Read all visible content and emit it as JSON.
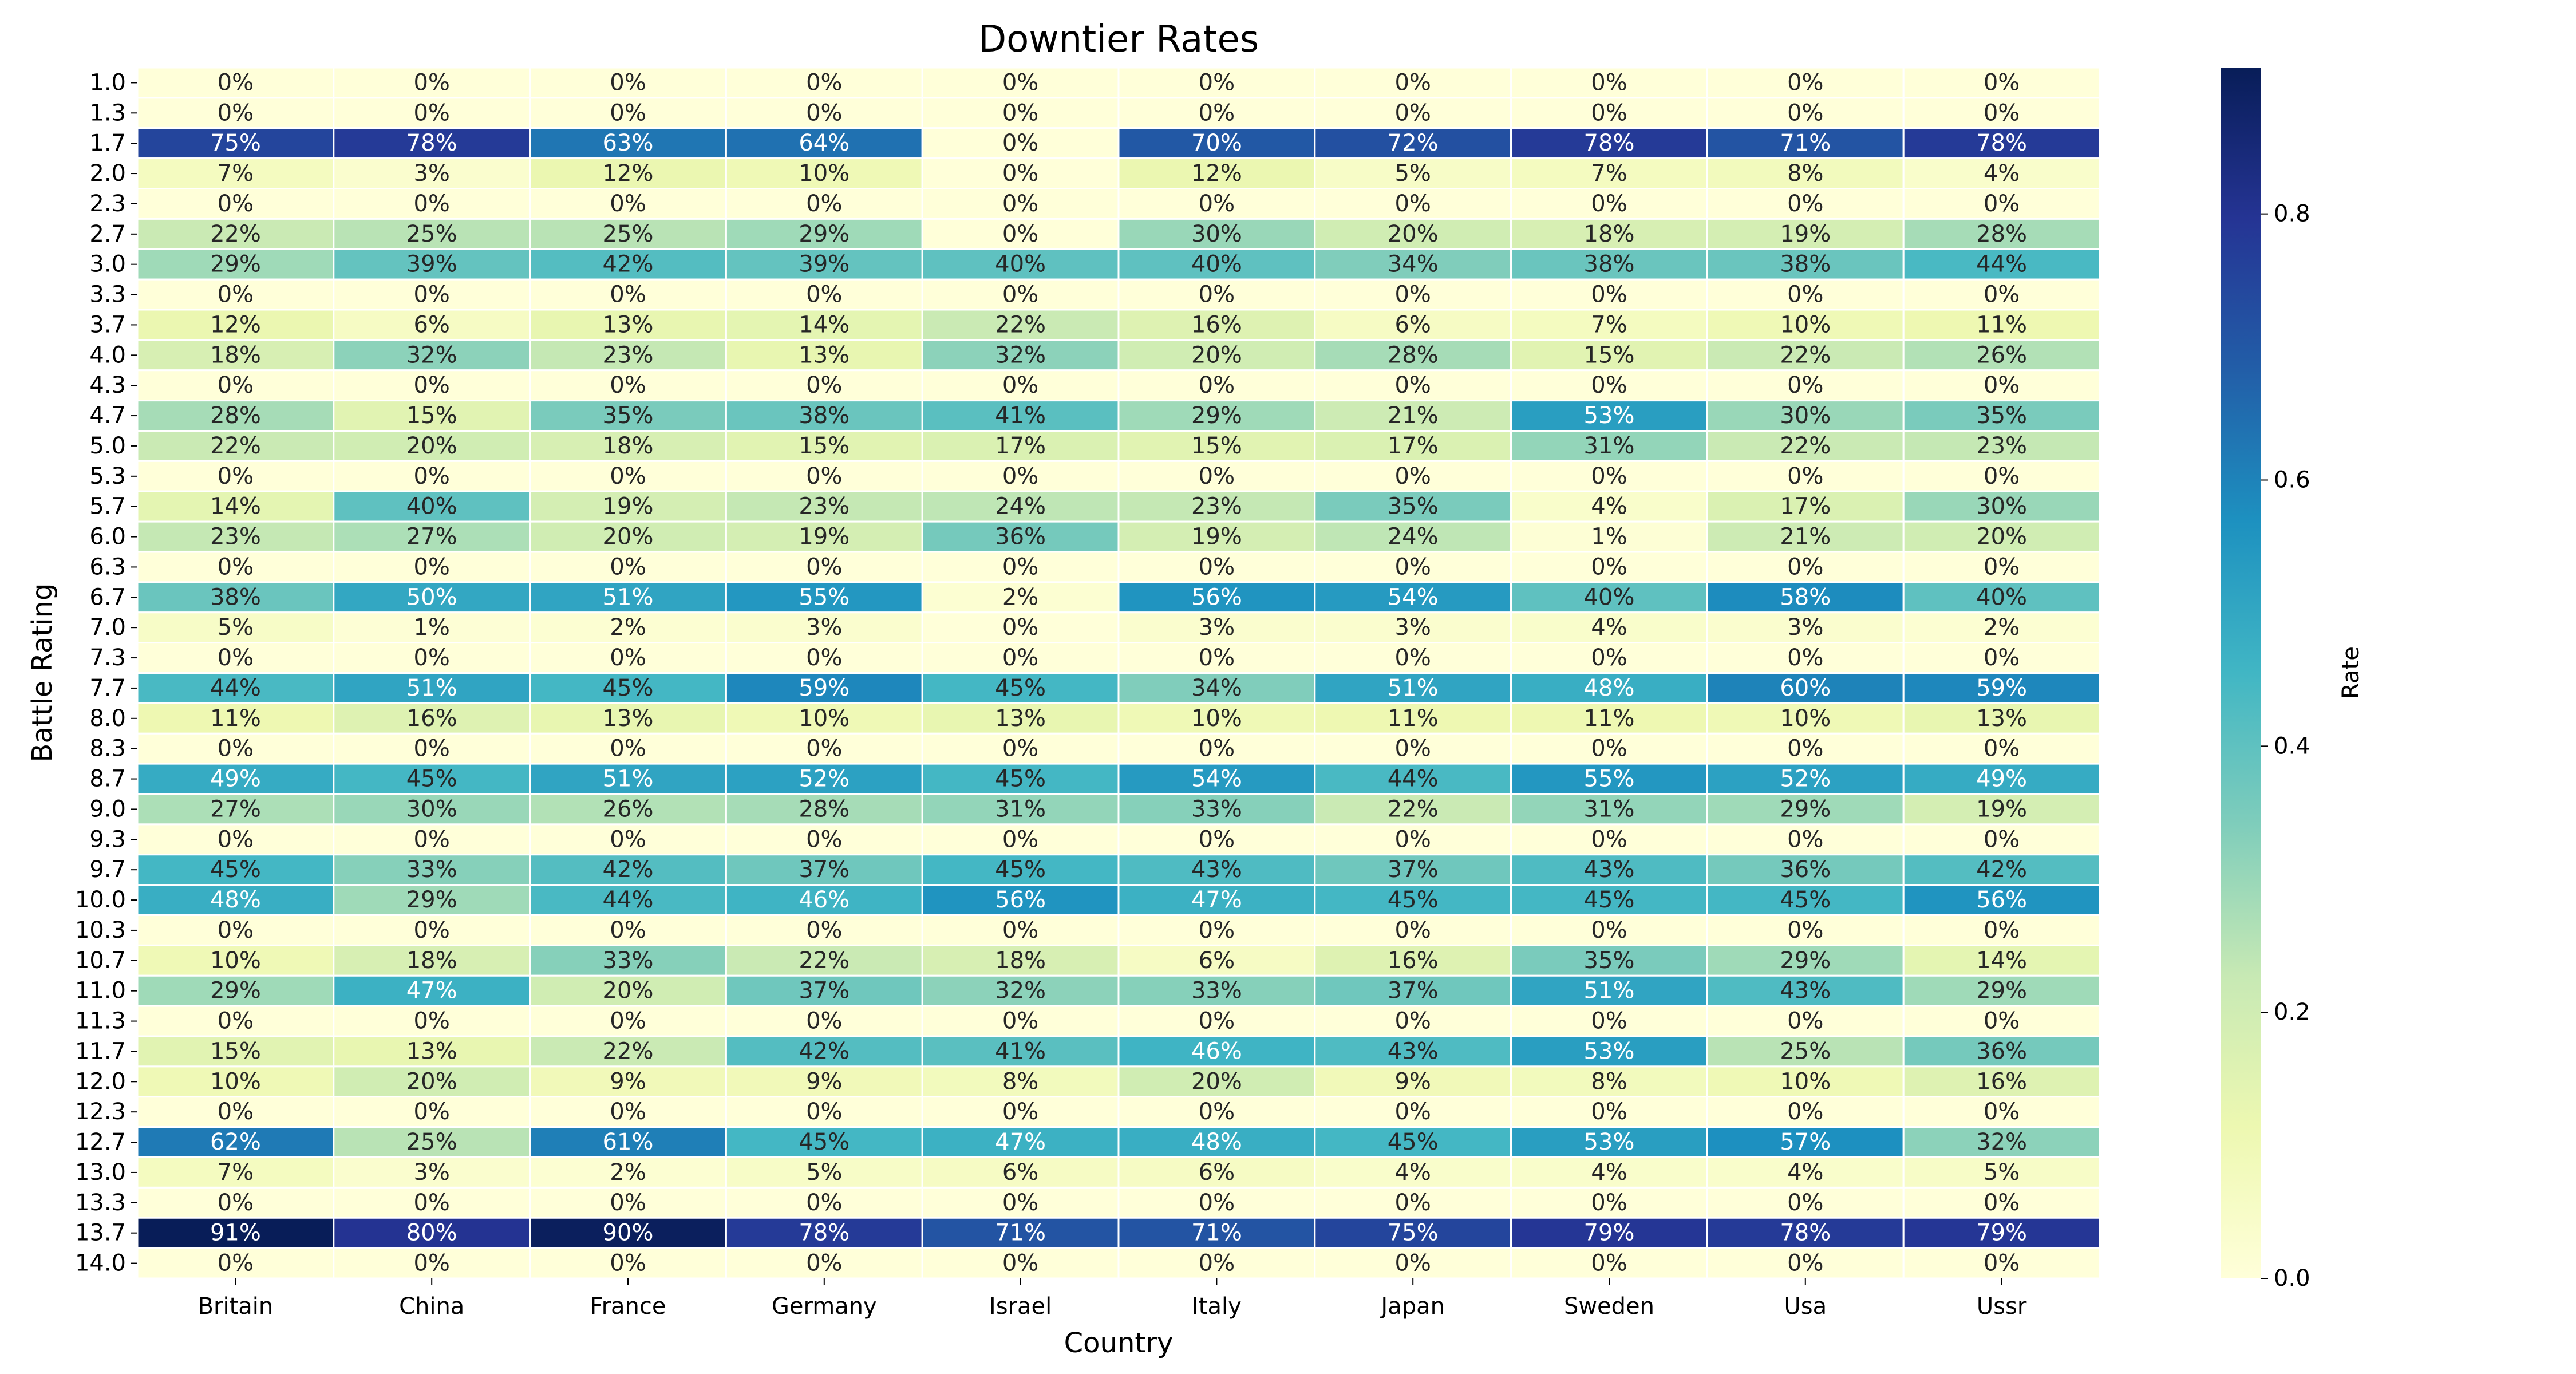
{
  "chart_data": {
    "type": "heatmap",
    "title": "Downtier Rates",
    "xlabel": "Country",
    "ylabel": "Battle Rating",
    "colorbar_label": "Rate",
    "colorbar_ticks": [
      "0.0",
      "0.2",
      "0.4",
      "0.6",
      "0.8"
    ],
    "colorbar_range": [
      0,
      0.91
    ],
    "colormap": "YlGnBu",
    "value_format": "percent",
    "x_categories": [
      "Britain",
      "China",
      "France",
      "Germany",
      "Israel",
      "Italy",
      "Japan",
      "Sweden",
      "Usa",
      "Ussr"
    ],
    "y_categories": [
      "1.0",
      "1.3",
      "1.7",
      "2.0",
      "2.3",
      "2.7",
      "3.0",
      "3.3",
      "3.7",
      "4.0",
      "4.3",
      "4.7",
      "5.0",
      "5.3",
      "5.7",
      "6.0",
      "6.3",
      "6.7",
      "7.0",
      "7.3",
      "7.7",
      "8.0",
      "8.3",
      "8.7",
      "9.0",
      "9.3",
      "9.7",
      "10.0",
      "10.3",
      "10.7",
      "11.0",
      "11.3",
      "11.7",
      "12.0",
      "12.3",
      "12.7",
      "13.0",
      "13.3",
      "13.7",
      "14.0"
    ],
    "values": [
      [
        0,
        0,
        0,
        0,
        0,
        0,
        0,
        0,
        0,
        0
      ],
      [
        0,
        0,
        0,
        0,
        0,
        0,
        0,
        0,
        0,
        0
      ],
      [
        75,
        78,
        63,
        64,
        0,
        70,
        72,
        78,
        71,
        78
      ],
      [
        7,
        3,
        12,
        10,
        0,
        12,
        5,
        7,
        8,
        4
      ],
      [
        0,
        0,
        0,
        0,
        0,
        0,
        0,
        0,
        0,
        0
      ],
      [
        22,
        25,
        25,
        29,
        0,
        30,
        20,
        18,
        19,
        28
      ],
      [
        29,
        39,
        42,
        39,
        40,
        40,
        34,
        38,
        38,
        44
      ],
      [
        0,
        0,
        0,
        0,
        0,
        0,
        0,
        0,
        0,
        0
      ],
      [
        12,
        6,
        13,
        14,
        22,
        16,
        6,
        7,
        10,
        11
      ],
      [
        18,
        32,
        23,
        13,
        32,
        20,
        28,
        15,
        22,
        26
      ],
      [
        0,
        0,
        0,
        0,
        0,
        0,
        0,
        0,
        0,
        0
      ],
      [
        28,
        15,
        35,
        38,
        41,
        29,
        21,
        53,
        30,
        35
      ],
      [
        22,
        20,
        18,
        15,
        17,
        15,
        17,
        31,
        22,
        23
      ],
      [
        0,
        0,
        0,
        0,
        0,
        0,
        0,
        0,
        0,
        0
      ],
      [
        14,
        40,
        19,
        23,
        24,
        23,
        35,
        4,
        17,
        30
      ],
      [
        23,
        27,
        20,
        19,
        36,
        19,
        24,
        1,
        21,
        20
      ],
      [
        0,
        0,
        0,
        0,
        0,
        0,
        0,
        0,
        0,
        0
      ],
      [
        38,
        50,
        51,
        55,
        2,
        56,
        54,
        40,
        58,
        40
      ],
      [
        5,
        1,
        2,
        3,
        0,
        3,
        3,
        4,
        3,
        2
      ],
      [
        0,
        0,
        0,
        0,
        0,
        0,
        0,
        0,
        0,
        0
      ],
      [
        44,
        51,
        45,
        59,
        45,
        34,
        51,
        48,
        60,
        59
      ],
      [
        11,
        16,
        13,
        10,
        13,
        10,
        11,
        11,
        10,
        13
      ],
      [
        0,
        0,
        0,
        0,
        0,
        0,
        0,
        0,
        0,
        0
      ],
      [
        49,
        45,
        51,
        52,
        45,
        54,
        44,
        55,
        52,
        49
      ],
      [
        27,
        30,
        26,
        28,
        31,
        33,
        22,
        31,
        29,
        19
      ],
      [
        0,
        0,
        0,
        0,
        0,
        0,
        0,
        0,
        0,
        0
      ],
      [
        45,
        33,
        42,
        37,
        45,
        43,
        37,
        43,
        36,
        42
      ],
      [
        48,
        29,
        44,
        46,
        56,
        47,
        45,
        45,
        45,
        56
      ],
      [
        0,
        0,
        0,
        0,
        0,
        0,
        0,
        0,
        0,
        0
      ],
      [
        10,
        18,
        33,
        22,
        18,
        6,
        16,
        35,
        29,
        14
      ],
      [
        29,
        47,
        20,
        37,
        32,
        33,
        37,
        51,
        43,
        29
      ],
      [
        0,
        0,
        0,
        0,
        0,
        0,
        0,
        0,
        0,
        0
      ],
      [
        15,
        13,
        22,
        42,
        41,
        46,
        43,
        53,
        25,
        36
      ],
      [
        10,
        20,
        9,
        9,
        8,
        20,
        9,
        8,
        10,
        16
      ],
      [
        0,
        0,
        0,
        0,
        0,
        0,
        0,
        0,
        0,
        0
      ],
      [
        62,
        25,
        61,
        45,
        47,
        48,
        45,
        53,
        57,
        32
      ],
      [
        7,
        3,
        2,
        5,
        6,
        6,
        4,
        4,
        4,
        5
      ],
      [
        0,
        0,
        0,
        0,
        0,
        0,
        0,
        0,
        0,
        0
      ],
      [
        91,
        80,
        90,
        78,
        71,
        71,
        75,
        79,
        78,
        79
      ],
      [
        0,
        0,
        0,
        0,
        0,
        0,
        0,
        0,
        0,
        0
      ]
    ]
  }
}
